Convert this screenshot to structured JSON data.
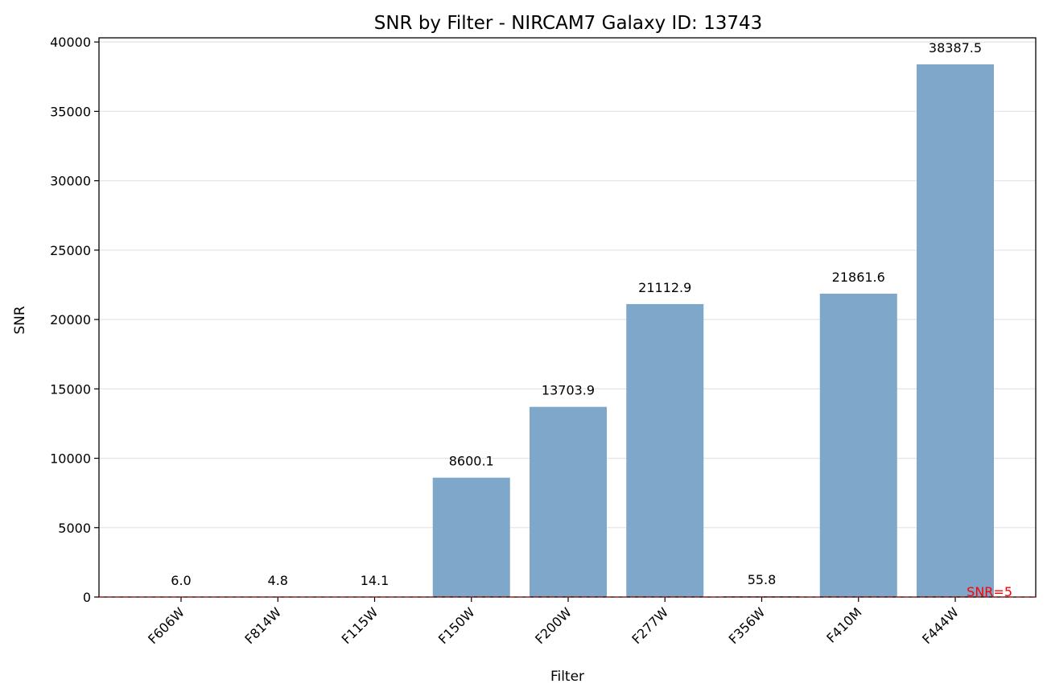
{
  "chart_data": {
    "type": "bar",
    "title": "SNR by Filter - NIRCAM7 Galaxy ID: 13743",
    "xlabel": "Filter",
    "ylabel": "SNR",
    "categories": [
      "F606W",
      "F814W",
      "F115W",
      "F150W",
      "F200W",
      "F277W",
      "F356W",
      "F410M",
      "F444W"
    ],
    "values": [
      6.0,
      4.8,
      14.1,
      8600.1,
      13703.9,
      21112.9,
      55.8,
      21861.6,
      38387.5
    ],
    "value_labels": [
      "6.0",
      "4.8",
      "14.1",
      "8600.1",
      "13703.9",
      "21112.9",
      "55.8",
      "21861.6",
      "38387.5"
    ],
    "ylim": [
      0,
      40300
    ],
    "yticks": [
      0,
      5000,
      10000,
      15000,
      20000,
      25000,
      30000,
      35000,
      40000
    ],
    "grid": "y",
    "bar_color": "#7ea7c9",
    "reference_line": {
      "value": 5,
      "label": "SNR=5",
      "color": "#ff0000"
    }
  }
}
